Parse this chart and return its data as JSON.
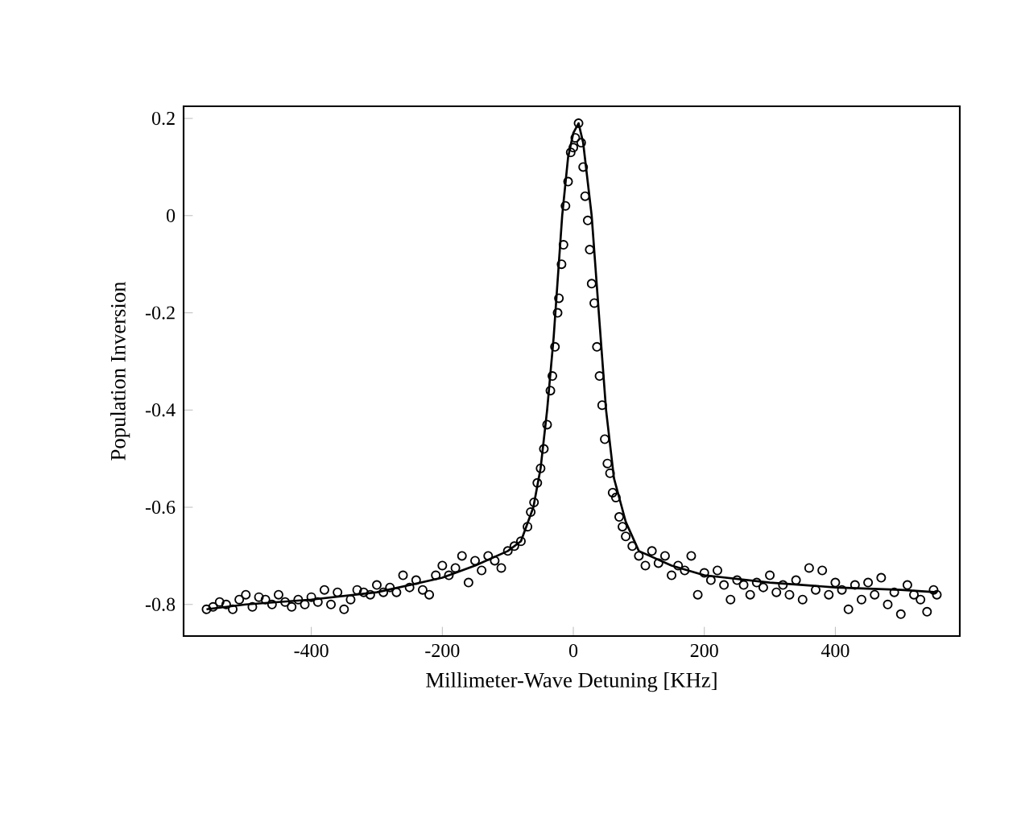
{
  "chart_data": {
    "type": "scatter",
    "xlabel": "Millimeter-Wave Detuning [KHz]",
    "ylabel": "Population Inversion",
    "xlim": [
      -595,
      590
    ],
    "ylim": [
      -0.865,
      0.225
    ],
    "xticks": [
      -400,
      -200,
      0,
      200,
      400
    ],
    "yticks": [
      -0.8,
      -0.6,
      -0.4,
      -0.2,
      0,
      0.2
    ],
    "grid": false,
    "series": [
      {
        "marker": "circle",
        "color": "#000000",
        "x": [
          -560,
          -550,
          -540,
          -530,
          -520,
          -510,
          -500,
          -490,
          -480,
          -470,
          -460,
          -450,
          -440,
          -430,
          -420,
          -410,
          -400,
          -390,
          -380,
          -370,
          -360,
          -350,
          -340,
          -330,
          -320,
          -310,
          -300,
          -290,
          -280,
          -270,
          -260,
          -250,
          -240,
          -230,
          -220,
          -210,
          -200,
          -190,
          -180,
          -170,
          -160,
          -150,
          -140,
          -130,
          -120,
          -110,
          -100,
          -90,
          -80,
          -70,
          -65,
          -60,
          -55,
          -50,
          -45,
          -40,
          -35,
          -32,
          -28,
          -24,
          -22,
          -18,
          -15,
          -12,
          -8,
          -4,
          0,
          3,
          8,
          12,
          15,
          18,
          22,
          25,
          28,
          32,
          36,
          40,
          44,
          48,
          52,
          56,
          60,
          65,
          70,
          75,
          80,
          90,
          100,
          110,
          120,
          130,
          140,
          150,
          160,
          170,
          180,
          190,
          200,
          210,
          220,
          230,
          240,
          250,
          260,
          270,
          280,
          290,
          300,
          310,
          320,
          330,
          340,
          350,
          360,
          370,
          380,
          390,
          400,
          410,
          420,
          430,
          440,
          450,
          460,
          470,
          480,
          490,
          500,
          510,
          520,
          530,
          540,
          550,
          555
        ],
        "values": [
          -0.81,
          -0.805,
          -0.795,
          -0.8,
          -0.81,
          -0.79,
          -0.78,
          -0.805,
          -0.785,
          -0.79,
          -0.8,
          -0.78,
          -0.795,
          -0.805,
          -0.79,
          -0.8,
          -0.785,
          -0.795,
          -0.77,
          -0.8,
          -0.775,
          -0.81,
          -0.79,
          -0.77,
          -0.775,
          -0.78,
          -0.76,
          -0.775,
          -0.765,
          -0.775,
          -0.74,
          -0.765,
          -0.75,
          -0.77,
          -0.78,
          -0.74,
          -0.72,
          -0.74,
          -0.725,
          -0.7,
          -0.755,
          -0.71,
          -0.73,
          -0.7,
          -0.71,
          -0.725,
          -0.69,
          -0.68,
          -0.67,
          -0.64,
          -0.61,
          -0.59,
          -0.55,
          -0.52,
          -0.48,
          -0.43,
          -0.36,
          -0.33,
          -0.27,
          -0.2,
          -0.17,
          -0.1,
          -0.06,
          0.02,
          0.07,
          0.13,
          0.14,
          0.16,
          0.19,
          0.15,
          0.1,
          0.04,
          -0.01,
          -0.07,
          -0.14,
          -0.18,
          -0.27,
          -0.33,
          -0.39,
          -0.46,
          -0.51,
          -0.53,
          -0.57,
          -0.58,
          -0.62,
          -0.64,
          -0.66,
          -0.68,
          -0.7,
          -0.72,
          -0.69,
          -0.715,
          -0.7,
          -0.74,
          -0.72,
          -0.73,
          -0.7,
          -0.78,
          -0.735,
          -0.75,
          -0.73,
          -0.76,
          -0.79,
          -0.75,
          -0.76,
          -0.78,
          -0.755,
          -0.765,
          -0.74,
          -0.775,
          -0.76,
          -0.78,
          -0.75,
          -0.79,
          -0.725,
          -0.77,
          -0.73,
          -0.78,
          -0.755,
          -0.77,
          -0.81,
          -0.76,
          -0.79,
          -0.755,
          -0.78,
          -0.745,
          -0.8,
          -0.775,
          -0.82,
          -0.76,
          -0.78,
          -0.79,
          -0.815,
          -0.77,
          -0.78
        ]
      },
      {
        "type": "line",
        "marker": "none",
        "line_style": "solid",
        "color": "#000000",
        "x": [
          -560,
          -500,
          -400,
          -300,
          -200,
          -150,
          -100,
          -80,
          -61,
          -50,
          -40,
          -30,
          -17,
          -8,
          0,
          8,
          15,
          28,
          40,
          50,
          62,
          74,
          80,
          100,
          150,
          200,
          300,
          400,
          500,
          555
        ],
        "values": [
          -0.81,
          -0.8,
          -0.79,
          -0.775,
          -0.745,
          -0.72,
          -0.69,
          -0.67,
          -0.6,
          -0.52,
          -0.4,
          -0.25,
          0,
          0.12,
          0.17,
          0.19,
          0.15,
          0,
          -0.22,
          -0.4,
          -0.54,
          -0.6,
          -0.63,
          -0.69,
          -0.72,
          -0.74,
          -0.755,
          -0.765,
          -0.77,
          -0.775
        ]
      }
    ]
  }
}
